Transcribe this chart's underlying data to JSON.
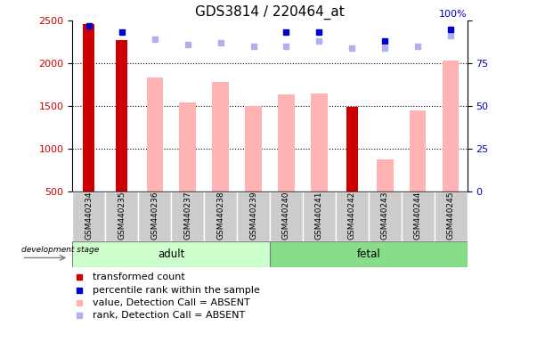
{
  "title": "GDS3814 / 220464_at",
  "samples": [
    "GSM440234",
    "GSM440235",
    "GSM440236",
    "GSM440237",
    "GSM440238",
    "GSM440239",
    "GSM440240",
    "GSM440241",
    "GSM440242",
    "GSM440243",
    "GSM440244",
    "GSM440245"
  ],
  "transformed_count": [
    2460,
    2270,
    null,
    null,
    null,
    null,
    null,
    null,
    1490,
    null,
    null,
    null
  ],
  "percentile_rank": [
    97,
    93,
    null,
    null,
    null,
    null,
    93,
    93,
    null,
    88,
    null,
    95
  ],
  "absent_value": [
    null,
    null,
    1830,
    1540,
    1780,
    1500,
    1640,
    1650,
    null,
    880,
    1450,
    2030
  ],
  "absent_rank": [
    null,
    null,
    89,
    86,
    87,
    85,
    85,
    88,
    84,
    84,
    85,
    91
  ],
  "ylim_left": [
    500,
    2500
  ],
  "ylim_right": [
    0,
    100
  ],
  "left_ticks": [
    500,
    1000,
    1500,
    2000,
    2500
  ],
  "right_ticks": [
    0,
    25,
    50,
    75,
    100
  ],
  "red_color": "#cc0000",
  "pink_color": "#ffb3b3",
  "blue_color": "#0000cc",
  "lavender_color": "#b0b0ee",
  "adult_bg": "#ccffcc",
  "fetal_bg": "#88dd88",
  "sample_bg": "#cccccc",
  "title_fontsize": 11,
  "tick_fontsize": 8,
  "legend_fontsize": 8
}
